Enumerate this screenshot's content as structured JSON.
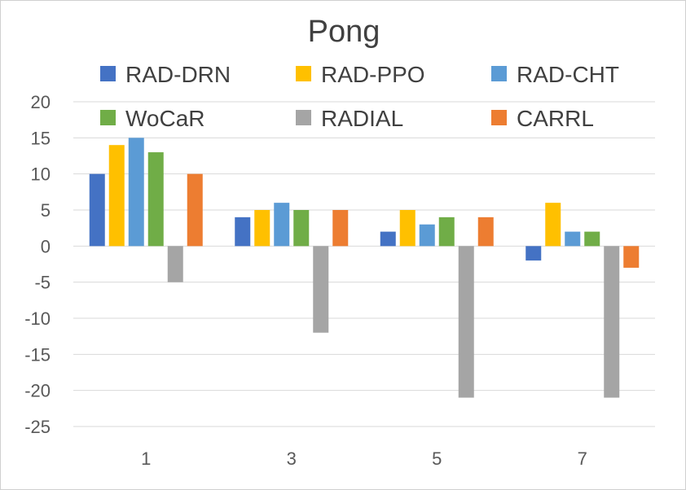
{
  "chart_data": {
    "type": "bar",
    "title": "Pong",
    "xlabel": "",
    "ylabel": "",
    "categories": [
      "1",
      "3",
      "5",
      "7"
    ],
    "ylim": [
      -25,
      20
    ],
    "yticks": [
      20,
      15,
      10,
      5,
      0,
      -5,
      -10,
      -15,
      -20,
      -25
    ],
    "ytick_labels": [
      "20",
      "15",
      "10",
      "5",
      "0",
      "-5",
      "-10",
      "-15",
      "-20",
      "-25"
    ],
    "grid": true,
    "legend_position": "top",
    "series": [
      {
        "name": "RAD-DRN",
        "color": "#4472C4",
        "values": [
          10,
          4,
          2,
          -2
        ]
      },
      {
        "name": "RAD-PPO",
        "color": "#FFC000",
        "values": [
          14,
          5,
          5,
          6
        ]
      },
      {
        "name": "RAD-CHT",
        "color": "#5B9BD5",
        "values": [
          15,
          6,
          3,
          2
        ]
      },
      {
        "name": "WoCaR",
        "color": "#70AD47",
        "values": [
          13,
          5,
          4,
          2
        ]
      },
      {
        "name": "RADIAL",
        "color": "#A5A5A5",
        "values": [
          -5,
          -12,
          -21,
          -21
        ]
      },
      {
        "name": "CARRL",
        "color": "#ED7D31",
        "values": [
          10,
          5,
          4,
          -3
        ]
      }
    ]
  }
}
